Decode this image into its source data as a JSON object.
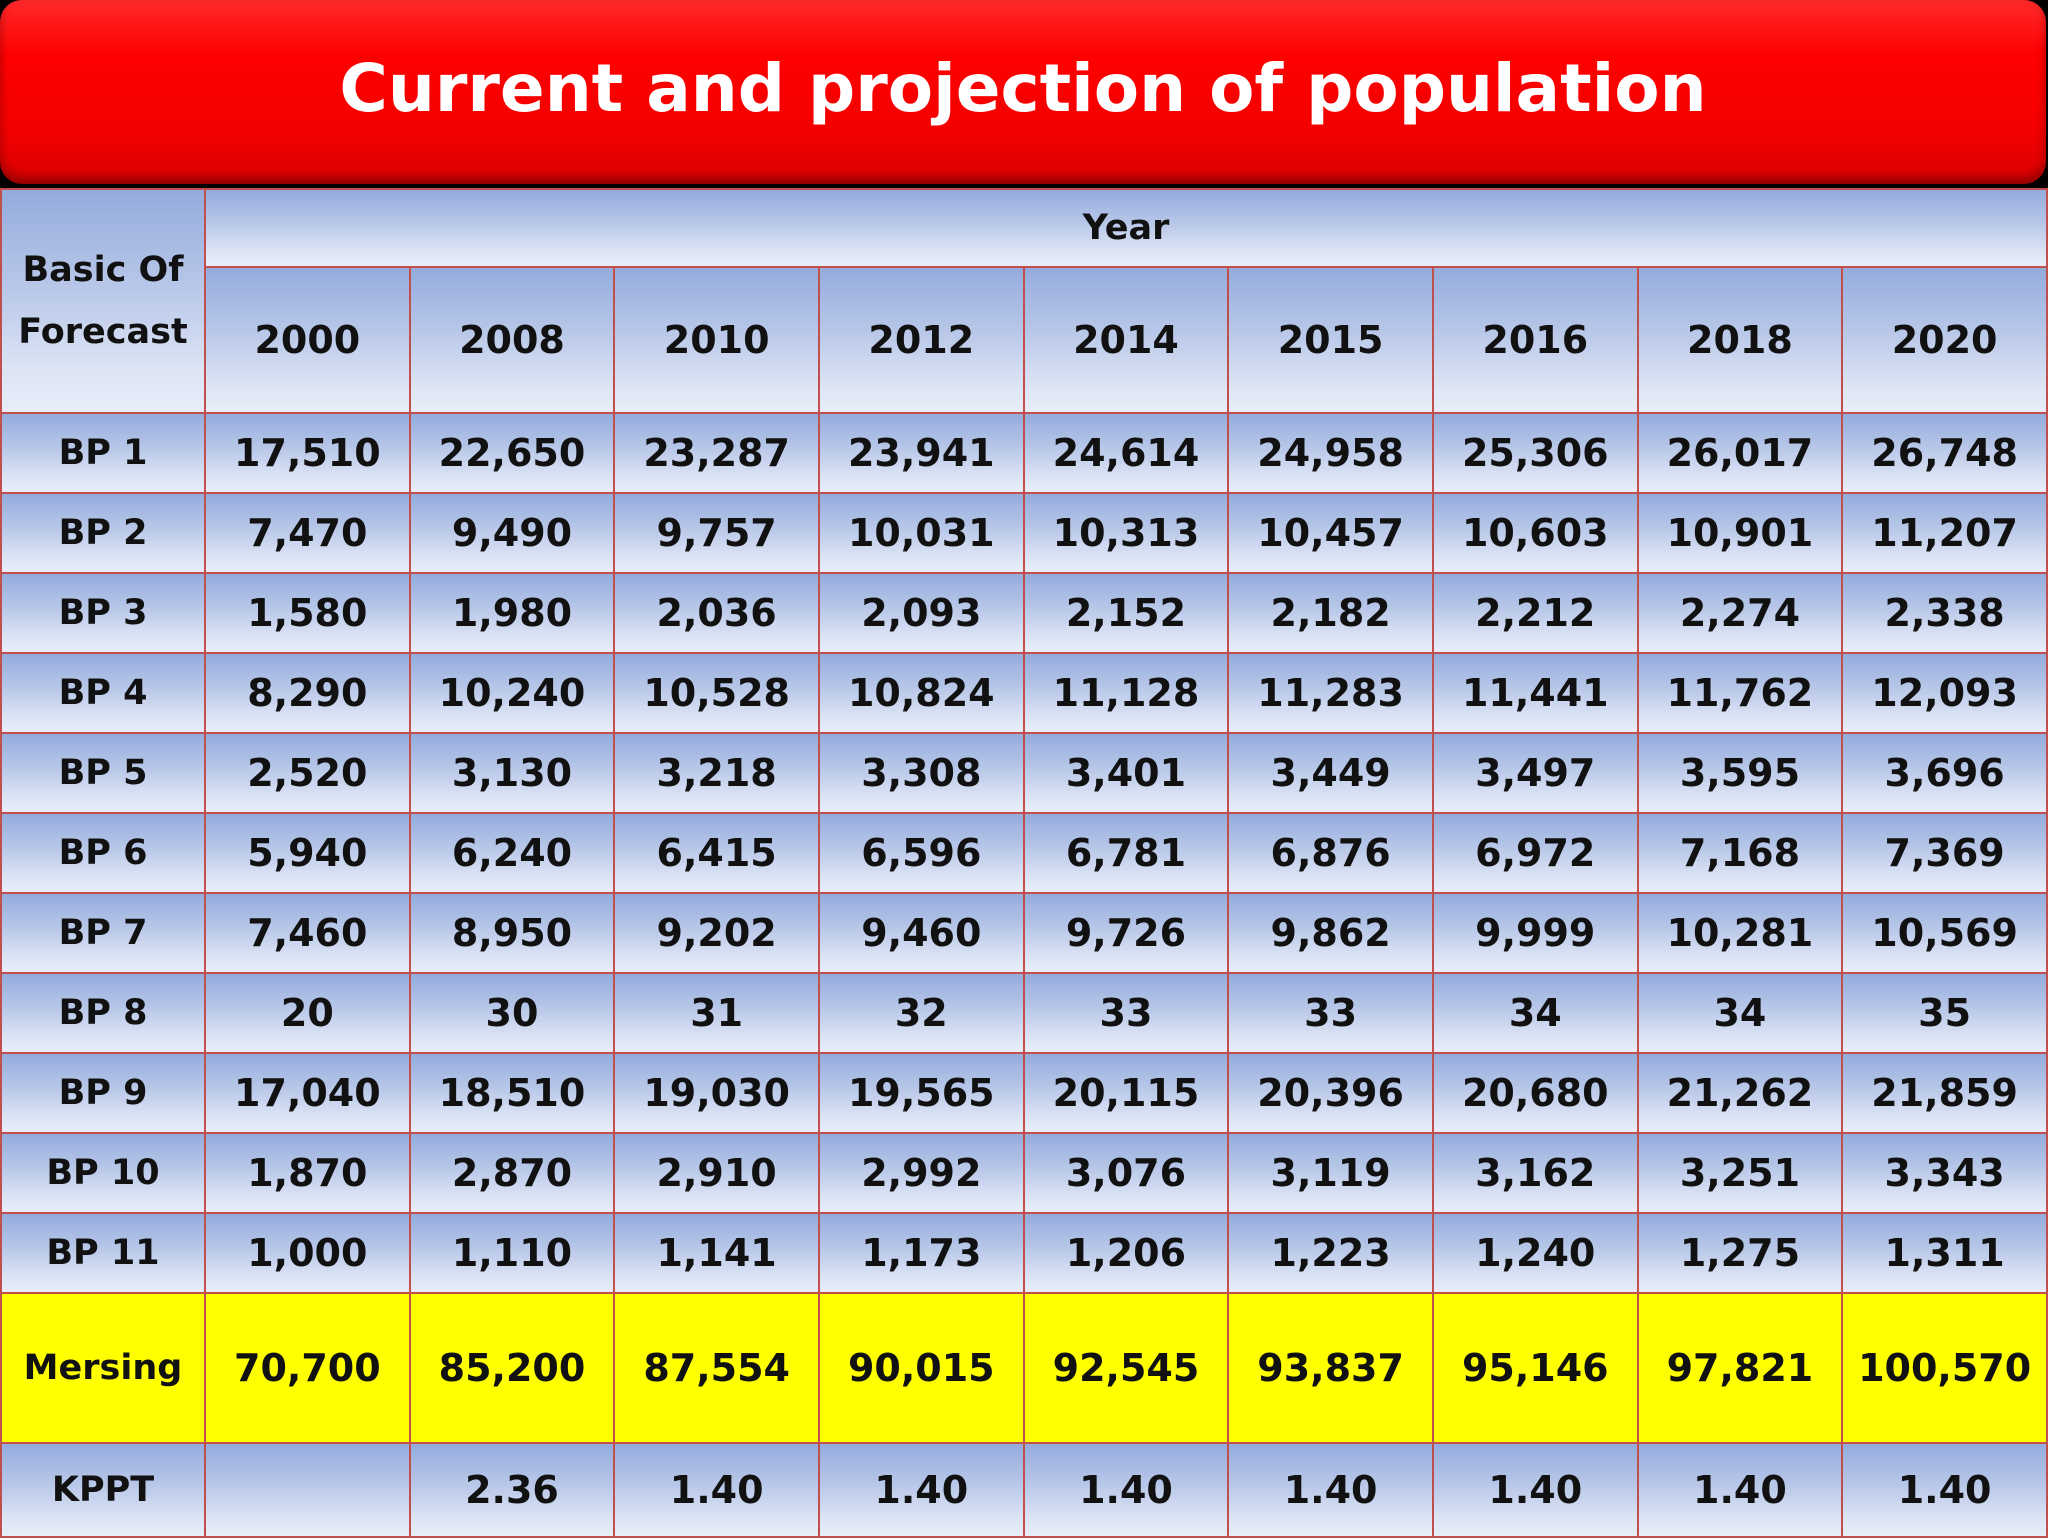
{
  "title": "Current and projection of population",
  "header": {
    "corner_label": "Basic Of Forecast",
    "group_label": "Year",
    "years": [
      "2000",
      "2008",
      "2010",
      "2012",
      "2014",
      "2015",
      "2016",
      "2018",
      "2020"
    ]
  },
  "rows": [
    {
      "label": "BP 1",
      "values": [
        "17,510",
        "22,650",
        "23,287",
        "23,941",
        "24,614",
        "24,958",
        "25,306",
        "26,017",
        "26,748"
      ]
    },
    {
      "label": "BP 2",
      "values": [
        "7,470",
        "9,490",
        "9,757",
        "10,031",
        "10,313",
        "10,457",
        "10,603",
        "10,901",
        "11,207"
      ]
    },
    {
      "label": "BP 3",
      "values": [
        "1,580",
        "1,980",
        "2,036",
        "2,093",
        "2,152",
        "2,182",
        "2,212",
        "2,274",
        "2,338"
      ]
    },
    {
      "label": "BP 4",
      "values": [
        "8,290",
        "10,240",
        "10,528",
        "10,824",
        "11,128",
        "11,283",
        "11,441",
        "11,762",
        "12,093"
      ]
    },
    {
      "label": "BP 5",
      "values": [
        "2,520",
        "3,130",
        "3,218",
        "3,308",
        "3,401",
        "3,449",
        "3,497",
        "3,595",
        "3,696"
      ]
    },
    {
      "label": "BP 6",
      "values": [
        "5,940",
        "6,240",
        "6,415",
        "6,596",
        "6,781",
        "6,876",
        "6,972",
        "7,168",
        "7,369"
      ]
    },
    {
      "label": "BP 7",
      "values": [
        "7,460",
        "8,950",
        "9,202",
        "9,460",
        "9,726",
        "9,862",
        "9,999",
        "10,281",
        "10,569"
      ]
    },
    {
      "label": "BP 8",
      "values": [
        "20",
        "30",
        "31",
        "32",
        "33",
        "33",
        "34",
        "34",
        "35"
      ]
    },
    {
      "label": "BP 9",
      "values": [
        "17,040",
        "18,510",
        "19,030",
        "19,565",
        "20,115",
        "20,396",
        "20,680",
        "21,262",
        "21,859"
      ]
    },
    {
      "label": "BP 10",
      "values": [
        "1,870",
        "2,870",
        "2,910",
        "2,992",
        "3,076",
        "3,119",
        "3,162",
        "3,251",
        "3,343"
      ]
    },
    {
      "label": "BP 11",
      "values": [
        "1,000",
        "1,110",
        "1,141",
        "1,173",
        "1,206",
        "1,223",
        "1,240",
        "1,275",
        "1,311"
      ]
    }
  ],
  "total_row": {
    "label": "Mersing",
    "values": [
      "70,700",
      "85,200",
      "87,554",
      "90,015",
      "92,545",
      "93,837",
      "95,146",
      "97,821",
      "100,570"
    ]
  },
  "kppt_row": {
    "label": "KPPT",
    "values": [
      "",
      "2.36",
      "1.40",
      "1.40",
      "1.40",
      "1.40",
      "1.40",
      "1.40",
      "1.40"
    ]
  },
  "colors": {
    "banner": "#ff0000",
    "cell_border": "#c0504d",
    "cell_fill_top": "#93abdc",
    "cell_fill_bottom": "#e8edf8",
    "total_row_fill": "#ffff00"
  }
}
